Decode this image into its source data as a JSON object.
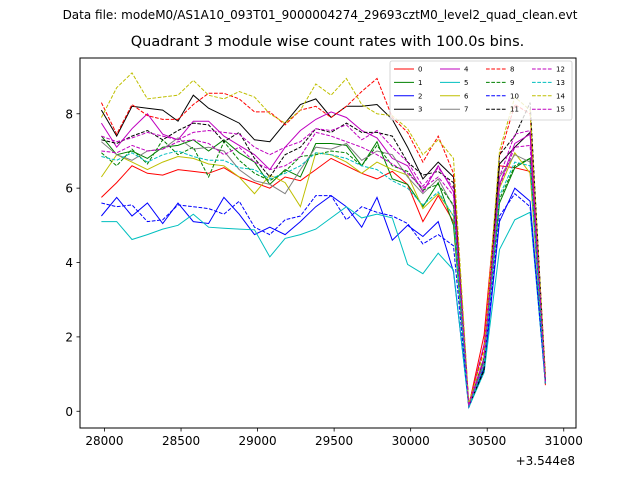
{
  "suptitle": "Data file: modeM0/AS1A10_093T01_9000004274_29693cztM0_level2_quad_clean.evt",
  "chart_data": {
    "type": "line",
    "title": "Quadrant 3 module wise count rates with 100.0s bins.",
    "xlabel": "",
    "ylabel": "",
    "x_offset_label": "+3.544e8",
    "xlim": [
      27840,
      31080
    ],
    "ylim": [
      -0.45,
      9.5
    ],
    "xticks": [
      28000,
      28500,
      29000,
      29500,
      30000,
      30500,
      31000
    ],
    "yticks": [
      0,
      2,
      4,
      6,
      8
    ],
    "legend_position": "top-right",
    "x": [
      27980,
      28080,
      28180,
      28280,
      28380,
      28480,
      28580,
      28680,
      28780,
      28880,
      28980,
      29080,
      29180,
      29280,
      29380,
      29480,
      29580,
      29680,
      29780,
      29880,
      29980,
      30080,
      30180,
      30280,
      30380,
      30480,
      30580,
      30680,
      30780,
      30880
    ],
    "series": [
      {
        "name": "0",
        "color": "#ff0000",
        "style": "solid",
        "values": [
          5.75,
          6.15,
          6.6,
          6.4,
          6.35,
          6.5,
          6.45,
          6.4,
          6.55,
          6.3,
          6.15,
          6.0,
          6.3,
          6.2,
          6.5,
          6.8,
          6.6,
          6.4,
          6.25,
          6.45,
          6.1,
          5.1,
          5.8,
          5.1,
          0.15,
          2.05,
          6.6,
          6.55,
          6.45,
          0.7
        ]
      },
      {
        "name": "1",
        "color": "#008000",
        "style": "solid",
        "values": [
          7.4,
          6.9,
          7.0,
          6.8,
          7.1,
          7.15,
          7.3,
          7.0,
          7.3,
          6.95,
          6.7,
          6.1,
          6.5,
          6.3,
          7.2,
          7.2,
          7.15,
          6.6,
          7.25,
          6.25,
          6.1,
          5.5,
          6.15,
          5.0,
          0.15,
          1.4,
          5.6,
          6.55,
          6.8,
          0.8
        ]
      },
      {
        "name": "2",
        "color": "#0000ff",
        "style": "solid",
        "values": [
          5.25,
          5.75,
          5.25,
          5.6,
          5.05,
          5.6,
          5.1,
          5.05,
          5.75,
          5.3,
          4.75,
          4.95,
          4.75,
          5.1,
          5.5,
          5.8,
          5.5,
          4.95,
          5.75,
          4.6,
          5.0,
          4.7,
          5.1,
          3.75,
          0.15,
          1.05,
          5.1,
          6.0,
          5.65,
          0.75
        ]
      },
      {
        "name": "3",
        "color": "#000000",
        "style": "solid",
        "values": [
          8.1,
          7.4,
          8.2,
          8.15,
          8.1,
          7.8,
          8.5,
          8.15,
          7.95,
          7.75,
          7.3,
          7.25,
          7.75,
          8.25,
          8.4,
          7.9,
          8.2,
          8.2,
          8.25,
          7.85,
          7.1,
          6.25,
          6.7,
          6.3,
          0.15,
          1.15,
          6.65,
          7.1,
          7.5,
          0.75
        ]
      },
      {
        "name": "4",
        "color": "#bf00bf",
        "style": "solid",
        "values": [
          7.75,
          7.1,
          7.6,
          8.0,
          7.45,
          7.3,
          7.8,
          7.8,
          7.4,
          7.15,
          6.9,
          6.5,
          7.1,
          7.55,
          7.85,
          8.05,
          7.9,
          7.55,
          7.35,
          6.8,
          6.6,
          5.9,
          6.6,
          5.9,
          0.15,
          1.8,
          6.1,
          7.2,
          7.45,
          0.75
        ]
      },
      {
        "name": "5",
        "color": "#00bfbf",
        "style": "solid",
        "values": [
          5.1,
          5.1,
          4.62,
          4.75,
          4.9,
          5.0,
          5.3,
          4.95,
          4.92,
          4.9,
          4.88,
          4.15,
          4.65,
          4.75,
          4.9,
          5.2,
          5.5,
          5.2,
          5.3,
          5.2,
          3.95,
          3.7,
          4.25,
          3.8,
          0.1,
          1.05,
          4.35,
          5.15,
          5.35,
          0.75
        ]
      },
      {
        "name": "6",
        "color": "#bfbf00",
        "style": "solid",
        "values": [
          6.3,
          6.9,
          6.7,
          6.5,
          6.7,
          6.85,
          6.8,
          6.65,
          6.6,
          6.3,
          5.85,
          6.35,
          6.15,
          5.5,
          6.95,
          6.9,
          6.7,
          6.4,
          6.7,
          6.5,
          6.35,
          5.45,
          5.85,
          5.25,
          0.1,
          1.3,
          6.0,
          6.95,
          6.4,
          0.75
        ]
      },
      {
        "name": "7",
        "color": "#808080",
        "style": "solid",
        "values": [
          7.25,
          6.9,
          6.75,
          7.0,
          7.05,
          7.35,
          7.05,
          7.1,
          7.0,
          6.5,
          6.2,
          6.1,
          5.85,
          6.5,
          7.1,
          7.05,
          7.2,
          6.75,
          7.0,
          6.9,
          6.3,
          5.85,
          6.25,
          5.5,
          0.15,
          1.3,
          6.3,
          6.9,
          6.7,
          0.75
        ]
      },
      {
        "name": "8",
        "color": "#ff0000",
        "style": "dashed",
        "values": [
          8.3,
          7.45,
          8.25,
          7.95,
          7.85,
          7.85,
          8.25,
          8.55,
          8.55,
          8.4,
          8.05,
          8.05,
          7.7,
          8.1,
          8.2,
          7.9,
          8.2,
          8.6,
          8.95,
          7.9,
          7.5,
          6.7,
          7.4,
          6.4,
          0.2,
          1.7,
          6.85,
          8.25,
          8.0,
          1.0
        ]
      },
      {
        "name": "9",
        "color": "#008000",
        "style": "dashed",
        "values": [
          6.95,
          6.6,
          7.05,
          6.65,
          7.3,
          6.9,
          7.1,
          6.3,
          7.25,
          6.75,
          6.4,
          6.2,
          6.45,
          6.85,
          6.9,
          7.0,
          6.95,
          6.6,
          7.15,
          6.6,
          6.45,
          5.95,
          6.1,
          5.55,
          0.15,
          1.45,
          5.7,
          6.6,
          6.8,
          0.75
        ]
      },
      {
        "name": "10",
        "color": "#0000ff",
        "style": "dashed",
        "values": [
          5.6,
          5.5,
          5.55,
          5.1,
          5.15,
          5.55,
          5.5,
          5.45,
          5.3,
          5.65,
          4.95,
          4.75,
          5.15,
          5.25,
          5.8,
          5.8,
          5.15,
          5.5,
          5.35,
          5.25,
          5.05,
          4.5,
          4.75,
          4.45,
          0.1,
          1.2,
          5.25,
          5.85,
          5.5,
          0.75
        ]
      },
      {
        "name": "11",
        "color": "#000000",
        "style": "dashed",
        "values": [
          7.3,
          7.2,
          7.4,
          7.55,
          7.3,
          7.55,
          7.75,
          7.7,
          7.25,
          7.5,
          6.8,
          6.3,
          6.9,
          7.1,
          7.6,
          7.5,
          7.75,
          7.5,
          7.5,
          7.4,
          6.7,
          6.35,
          6.45,
          6.15,
          0.15,
          1.1,
          6.9,
          7.4,
          8.3,
          0.85
        ]
      },
      {
        "name": "12",
        "color": "#bf00bf",
        "style": "dashed",
        "values": [
          7.0,
          6.95,
          7.15,
          7.0,
          7.05,
          7.25,
          7.3,
          7.2,
          6.9,
          7.1,
          6.7,
          6.5,
          6.6,
          6.85,
          7.5,
          7.4,
          7.25,
          7.1,
          6.9,
          6.65,
          6.4,
          6.0,
          6.3,
          5.8,
          0.15,
          1.35,
          6.05,
          7.1,
          7.15,
          0.75
        ]
      },
      {
        "name": "13",
        "color": "#00bfbf",
        "style": "dashed",
        "values": [
          6.85,
          6.75,
          6.95,
          6.7,
          6.9,
          7.0,
          6.85,
          6.75,
          6.75,
          6.55,
          6.5,
          6.25,
          6.4,
          6.6,
          6.95,
          6.9,
          6.8,
          6.6,
          6.5,
          6.2,
          6.0,
          5.55,
          5.9,
          5.25,
          0.1,
          1.25,
          5.8,
          6.7,
          6.6,
          0.75
        ]
      },
      {
        "name": "14",
        "color": "#bfbf00",
        "style": "dashed",
        "values": [
          7.9,
          8.7,
          9.1,
          8.4,
          8.45,
          8.5,
          8.9,
          8.5,
          8.4,
          8.6,
          8.45,
          8.0,
          7.75,
          8.1,
          8.8,
          8.5,
          8.95,
          8.25,
          8.0,
          7.95,
          7.6,
          6.9,
          7.3,
          6.8,
          0.2,
          1.6,
          7.0,
          8.45,
          8.1,
          0.95
        ]
      },
      {
        "name": "15",
        "color": "#bf00bf",
        "style": "dashed",
        "values": [
          7.4,
          7.25,
          7.35,
          7.5,
          7.4,
          7.3,
          7.5,
          7.55,
          7.5,
          7.45,
          7.1,
          6.9,
          7.1,
          7.25,
          7.6,
          7.55,
          7.7,
          7.3,
          7.55,
          7.1,
          6.7,
          6.05,
          6.55,
          6.0,
          0.15,
          1.45,
          6.3,
          7.45,
          7.55,
          0.8
        ]
      }
    ]
  }
}
